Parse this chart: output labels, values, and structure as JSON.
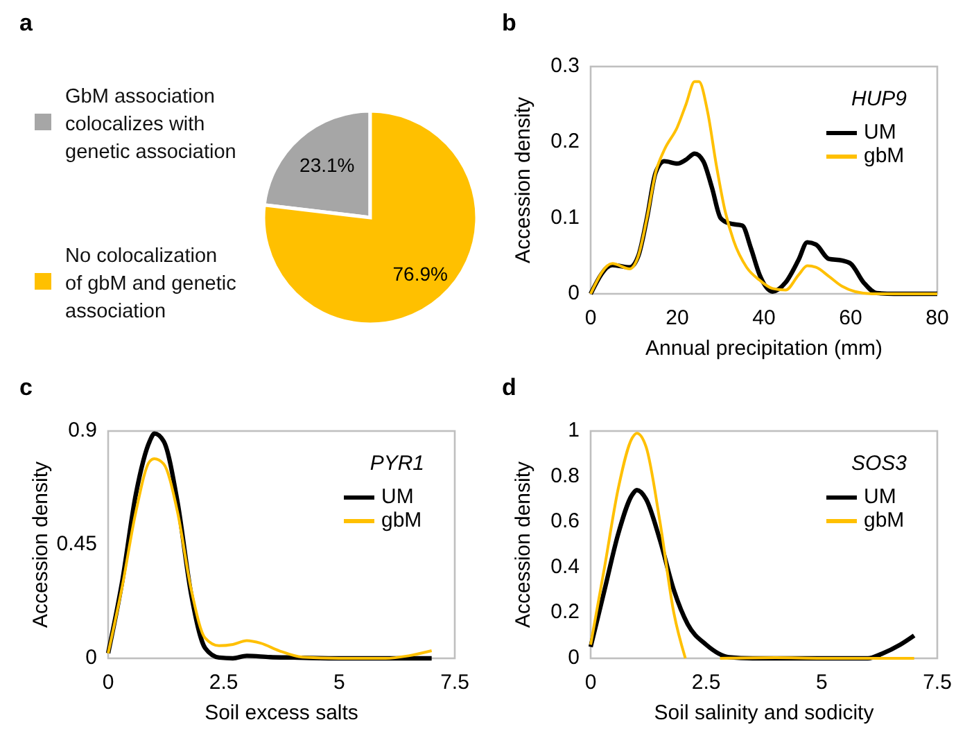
{
  "chart_data": [
    {
      "type": "pie",
      "title": "a",
      "categories": [
        "GbM association colocalizes with genetic association",
        "No colocalization of gbM and genetic association"
      ],
      "values": [
        23.1,
        76.9
      ],
      "colors": [
        "#a6a6a6",
        "#ffc000"
      ],
      "value_labels": [
        "23.1%",
        "76.9%"
      ],
      "legend": "left"
    },
    {
      "type": "line",
      "title": "b",
      "xlabel": "Annual precipitation (mm)",
      "ylabel": "Accession density",
      "annotations": [
        "HUP9"
      ],
      "xlim": [
        0,
        80
      ],
      "ylim": [
        0,
        0.3
      ],
      "xticks": [
        0,
        20,
        40,
        60,
        80
      ],
      "yticks": [
        0,
        0.1,
        0.2,
        0.3
      ],
      "legend": "top right",
      "series": [
        {
          "name": "UM",
          "color": "#000000",
          "x": [
            0,
            5,
            9,
            11,
            13,
            15,
            17,
            20,
            22,
            24,
            26,
            28,
            30,
            32,
            35,
            37,
            39,
            42,
            45,
            48,
            50,
            52,
            55,
            58,
            60,
            63,
            66,
            70,
            80
          ],
          "values": [
            0,
            0.038,
            0.035,
            0.05,
            0.1,
            0.16,
            0.175,
            0.172,
            0.177,
            0.185,
            0.175,
            0.14,
            0.1,
            0.093,
            0.09,
            0.06,
            0.025,
            0.003,
            0.015,
            0.045,
            0.068,
            0.065,
            0.046,
            0.044,
            0.04,
            0.015,
            0.001,
            0,
            0
          ]
        },
        {
          "name": "gbM",
          "color": "#ffc000",
          "x": [
            0,
            5,
            9,
            11,
            13,
            15,
            17,
            20,
            22,
            24,
            25,
            27,
            29,
            31,
            33,
            36,
            39,
            42,
            45,
            48,
            50,
            52,
            55,
            58,
            61,
            65,
            80
          ],
          "values": [
            0,
            0.04,
            0.033,
            0.05,
            0.1,
            0.16,
            0.19,
            0.22,
            0.25,
            0.28,
            0.28,
            0.24,
            0.17,
            0.11,
            0.07,
            0.035,
            0.018,
            0.007,
            0.005,
            0.025,
            0.037,
            0.035,
            0.023,
            0.01,
            0.003,
            0,
            0
          ]
        }
      ]
    },
    {
      "type": "line",
      "title": "c",
      "xlabel": "Soil excess salts",
      "ylabel": "Accession density",
      "annotations": [
        "PYR1"
      ],
      "xlim": [
        0,
        7.5
      ],
      "ylim": [
        0,
        0.9
      ],
      "xticks": [
        0,
        2.5,
        5,
        7.5
      ],
      "yticks": [
        0,
        0.45,
        0.9
      ],
      "legend": "top right",
      "series": [
        {
          "name": "UM",
          "color": "#000000",
          "x": [
            0,
            0.3,
            0.6,
            0.9,
            1,
            1.2,
            1.5,
            1.8,
            2.1,
            2.4,
            2.7,
            3,
            3.5,
            4,
            5,
            6,
            7
          ],
          "values": [
            0.02,
            0.3,
            0.65,
            0.86,
            0.89,
            0.86,
            0.62,
            0.25,
            0.04,
            0.003,
            0,
            0.01,
            0.005,
            0.003,
            0,
            0,
            0
          ]
        },
        {
          "name": "gbM",
          "color": "#ffc000",
          "x": [
            0,
            0.3,
            0.6,
            0.9,
            1,
            1.2,
            1.5,
            1.8,
            2.1,
            2.4,
            2.7,
            3,
            3.3,
            3.7,
            4.2,
            5,
            6,
            6.5,
            7
          ],
          "values": [
            0.02,
            0.28,
            0.58,
            0.78,
            0.79,
            0.77,
            0.58,
            0.27,
            0.08,
            0.05,
            0.055,
            0.07,
            0.06,
            0.03,
            0.005,
            0,
            0,
            0.01,
            0.03
          ]
        }
      ]
    },
    {
      "type": "line",
      "title": "d",
      "xlabel": "Soil salinity and sodicity",
      "ylabel": "Accession density",
      "annotations": [
        "SOS3"
      ],
      "xlim": [
        0,
        7.5
      ],
      "ylim": [
        0,
        1
      ],
      "xticks": [
        0,
        2.5,
        5,
        7.5
      ],
      "yticks": [
        0,
        0.2,
        0.4,
        0.6,
        0.8,
        1
      ],
      "legend": "top right",
      "series": [
        {
          "name": "UM",
          "color": "#000000",
          "x": [
            0,
            0.3,
            0.6,
            0.9,
            1,
            1.2,
            1.5,
            1.8,
            2.1,
            2.5,
            3,
            3.5,
            5,
            6,
            6.3,
            6.7,
            7
          ],
          "values": [
            0.05,
            0.3,
            0.55,
            0.72,
            0.74,
            0.7,
            0.52,
            0.3,
            0.15,
            0.06,
            0.005,
            0,
            0,
            0,
            0.02,
            0.06,
            0.1
          ]
        },
        {
          "name": "gbM",
          "color": "#ffc000",
          "x": [
            0,
            0.3,
            0.6,
            0.9,
            1,
            1.2,
            1.5,
            1.8,
            2.05,
            2.4,
            2.8,
            4,
            5,
            7
          ],
          "values": [
            0.06,
            0.4,
            0.75,
            0.97,
            0.99,
            0.93,
            0.6,
            0.2,
            0,
            null,
            0,
            0.003,
            0,
            0
          ]
        }
      ]
    }
  ]
}
